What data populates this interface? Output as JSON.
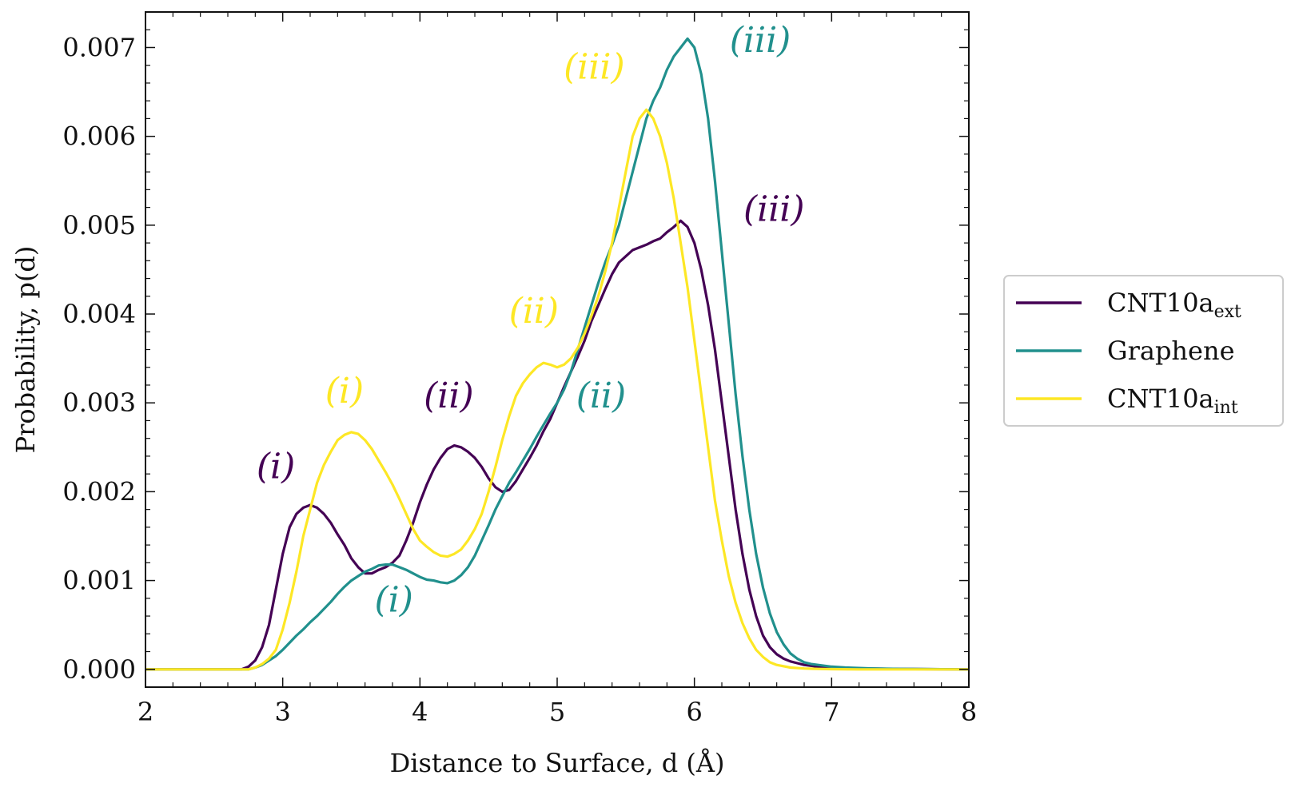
{
  "chart_data": {
    "type": "line",
    "xlabel": "Distance to Surface, d (Å)",
    "ylabel": "Probability, p(d)",
    "xlim": [
      2,
      8
    ],
    "ylim": [
      -0.0002,
      0.0074
    ],
    "xticks": [
      2,
      3,
      4,
      5,
      6,
      7,
      8
    ],
    "xtick_labels": [
      "2",
      "3",
      "4",
      "5",
      "6",
      "7",
      "8"
    ],
    "yticks": [
      0.0,
      0.001,
      0.002,
      0.003,
      0.004,
      0.005,
      0.006,
      0.007
    ],
    "ytick_labels": [
      "0.000",
      "0.001",
      "0.002",
      "0.003",
      "0.004",
      "0.005",
      "0.006",
      "0.007"
    ],
    "grid": false,
    "legend_position": "outside-right",
    "series": [
      {
        "name": "CNT10a",
        "name_sub": "ext",
        "color": "#440154",
        "x": [
          2.0,
          2.7,
          2.75,
          2.8,
          2.85,
          2.9,
          2.95,
          3.0,
          3.05,
          3.1,
          3.15,
          3.2,
          3.25,
          3.3,
          3.35,
          3.4,
          3.45,
          3.5,
          3.55,
          3.6,
          3.65,
          3.7,
          3.75,
          3.8,
          3.85,
          3.9,
          3.95,
          4.0,
          4.05,
          4.1,
          4.15,
          4.2,
          4.25,
          4.3,
          4.35,
          4.4,
          4.45,
          4.5,
          4.55,
          4.6,
          4.65,
          4.7,
          4.75,
          4.8,
          4.85,
          4.9,
          4.95,
          5.0,
          5.05,
          5.1,
          5.15,
          5.2,
          5.25,
          5.3,
          5.35,
          5.4,
          5.45,
          5.5,
          5.55,
          5.6,
          5.65,
          5.7,
          5.75,
          5.8,
          5.85,
          5.9,
          5.95,
          6.0,
          6.05,
          6.1,
          6.15,
          6.2,
          6.25,
          6.3,
          6.35,
          6.4,
          6.45,
          6.5,
          6.55,
          6.6,
          6.65,
          6.7,
          6.75,
          6.8,
          6.85,
          6.9,
          6.95,
          7.0,
          7.1,
          7.2,
          7.3,
          7.5,
          8.0
        ],
        "y": [
          0.0,
          0.0,
          3e-05,
          0.0001,
          0.00025,
          0.0005,
          0.0009,
          0.0013,
          0.0016,
          0.00175,
          0.00182,
          0.00185,
          0.00182,
          0.00175,
          0.00165,
          0.00152,
          0.0014,
          0.00125,
          0.00115,
          0.00108,
          0.00108,
          0.00112,
          0.00115,
          0.0012,
          0.00128,
          0.00145,
          0.00165,
          0.00188,
          0.00208,
          0.00225,
          0.00238,
          0.00248,
          0.00252,
          0.0025,
          0.00245,
          0.00238,
          0.00228,
          0.00215,
          0.00205,
          0.002,
          0.00202,
          0.00212,
          0.00225,
          0.00238,
          0.00252,
          0.00268,
          0.00282,
          0.003,
          0.00318,
          0.00335,
          0.00352,
          0.0037,
          0.00392,
          0.0041,
          0.00428,
          0.00445,
          0.00458,
          0.00465,
          0.00472,
          0.00475,
          0.00478,
          0.00482,
          0.00485,
          0.00492,
          0.00498,
          0.00505,
          0.00498,
          0.0048,
          0.0045,
          0.0041,
          0.0036,
          0.003,
          0.0024,
          0.0018,
          0.0013,
          0.0009,
          0.0006,
          0.00038,
          0.00025,
          0.00017,
          0.00012,
          9e-05,
          7e-05,
          5e-05,
          4e-05,
          3e-05,
          2.5e-05,
          2e-05,
          1.5e-05,
          1e-05,
          8e-06,
          4e-06,
          0.0
        ]
      },
      {
        "name": "Graphene",
        "color": "#21908d",
        "x": [
          2.0,
          2.75,
          2.8,
          2.85,
          2.9,
          2.95,
          3.0,
          3.05,
          3.1,
          3.15,
          3.2,
          3.25,
          3.3,
          3.35,
          3.4,
          3.45,
          3.5,
          3.55,
          3.6,
          3.65,
          3.7,
          3.75,
          3.8,
          3.85,
          3.9,
          3.95,
          4.0,
          4.05,
          4.1,
          4.15,
          4.2,
          4.25,
          4.3,
          4.35,
          4.4,
          4.45,
          4.5,
          4.55,
          4.6,
          4.65,
          4.7,
          4.75,
          4.8,
          4.85,
          4.9,
          4.95,
          5.0,
          5.05,
          5.1,
          5.15,
          5.2,
          5.25,
          5.3,
          5.35,
          5.4,
          5.45,
          5.5,
          5.55,
          5.6,
          5.65,
          5.7,
          5.75,
          5.8,
          5.85,
          5.9,
          5.95,
          6.0,
          6.05,
          6.1,
          6.15,
          6.2,
          6.25,
          6.3,
          6.35,
          6.4,
          6.45,
          6.5,
          6.55,
          6.6,
          6.65,
          6.7,
          6.75,
          6.8,
          6.85,
          6.9,
          6.95,
          7.0,
          7.1,
          7.2,
          7.3,
          7.5,
          8.0
        ],
        "y": [
          0.0,
          0.0,
          2e-05,
          5e-05,
          0.0001,
          0.00015,
          0.00022,
          0.0003,
          0.00038,
          0.00045,
          0.00053,
          0.0006,
          0.00068,
          0.00076,
          0.00085,
          0.00093,
          0.001,
          0.00105,
          0.0011,
          0.00113,
          0.00117,
          0.00118,
          0.00118,
          0.00115,
          0.00112,
          0.00108,
          0.00104,
          0.00101,
          0.001,
          0.00098,
          0.00097,
          0.001,
          0.00106,
          0.00115,
          0.00128,
          0.00145,
          0.00162,
          0.0018,
          0.00195,
          0.0021,
          0.00222,
          0.00235,
          0.00248,
          0.00262,
          0.00275,
          0.00288,
          0.003,
          0.00315,
          0.00335,
          0.0036,
          0.00385,
          0.0041,
          0.00435,
          0.00458,
          0.00478,
          0.005,
          0.0053,
          0.0056,
          0.0059,
          0.0062,
          0.0064,
          0.00655,
          0.00675,
          0.0069,
          0.007,
          0.0071,
          0.007,
          0.0067,
          0.0062,
          0.0055,
          0.0047,
          0.0039,
          0.0031,
          0.0024,
          0.0018,
          0.0013,
          0.00092,
          0.00063,
          0.00042,
          0.00028,
          0.00018,
          0.00012,
          8e-05,
          6e-05,
          5e-05,
          4e-05,
          3e-05,
          2e-05,
          1.5e-05,
          1e-05,
          5e-06,
          0.0
        ]
      },
      {
        "name": "CNT10a",
        "name_sub": "int",
        "color": "#fde725",
        "x": [
          2.0,
          2.75,
          2.8,
          2.85,
          2.9,
          2.95,
          3.0,
          3.05,
          3.1,
          3.15,
          3.2,
          3.25,
          3.3,
          3.35,
          3.4,
          3.45,
          3.5,
          3.55,
          3.6,
          3.65,
          3.7,
          3.75,
          3.8,
          3.85,
          3.9,
          3.95,
          4.0,
          4.05,
          4.1,
          4.15,
          4.2,
          4.25,
          4.3,
          4.35,
          4.4,
          4.45,
          4.5,
          4.55,
          4.6,
          4.65,
          4.7,
          4.75,
          4.8,
          4.85,
          4.9,
          4.95,
          5.0,
          5.05,
          5.1,
          5.15,
          5.2,
          5.25,
          5.3,
          5.35,
          5.4,
          5.45,
          5.5,
          5.55,
          5.6,
          5.65,
          5.7,
          5.75,
          5.8,
          5.85,
          5.9,
          5.95,
          6.0,
          6.05,
          6.1,
          6.15,
          6.2,
          6.25,
          6.3,
          6.35,
          6.4,
          6.45,
          6.5,
          6.55,
          6.6,
          6.7,
          6.8,
          6.9,
          7.0,
          7.2,
          7.5,
          8.0
        ],
        "y": [
          0.0,
          0.0,
          2e-05,
          6e-05,
          0.00012,
          0.00022,
          0.00045,
          0.00075,
          0.0011,
          0.0015,
          0.0018,
          0.0021,
          0.0023,
          0.00245,
          0.00258,
          0.00264,
          0.00267,
          0.00265,
          0.00258,
          0.00248,
          0.00235,
          0.00222,
          0.00208,
          0.00192,
          0.00175,
          0.00158,
          0.00145,
          0.00138,
          0.00132,
          0.00128,
          0.00127,
          0.0013,
          0.00135,
          0.00145,
          0.00158,
          0.00175,
          0.002,
          0.00228,
          0.00258,
          0.00285,
          0.00308,
          0.00322,
          0.00332,
          0.0034,
          0.00345,
          0.00343,
          0.0034,
          0.00343,
          0.0035,
          0.00362,
          0.00378,
          0.00398,
          0.0042,
          0.00448,
          0.0048,
          0.0052,
          0.0056,
          0.006,
          0.0062,
          0.0063,
          0.0062,
          0.006,
          0.0057,
          0.0053,
          0.0048,
          0.0043,
          0.0037,
          0.0031,
          0.0025,
          0.0019,
          0.00145,
          0.00105,
          0.00075,
          0.00052,
          0.00035,
          0.00022,
          0.00014,
          8e-05,
          5e-05,
          2e-05,
          1e-05,
          5e-06,
          2e-06,
          0.0,
          0.0,
          0.0
        ]
      }
    ],
    "annotations": [
      {
        "text": "(i)",
        "x": 2.95,
        "y": 0.00215,
        "color": "#440154"
      },
      {
        "text": "(ii)",
        "x": 4.21,
        "y": 0.00295,
        "color": "#440154"
      },
      {
        "text": "(iii)",
        "x": 6.58,
        "y": 0.00505,
        "color": "#440154"
      },
      {
        "text": "(i)",
        "x": 3.45,
        "y": 0.003,
        "color": "#fde725"
      },
      {
        "text": "(ii)",
        "x": 4.83,
        "y": 0.0039,
        "color": "#fde725"
      },
      {
        "text": "(iii)",
        "x": 5.27,
        "y": 0.00665,
        "color": "#fde725"
      },
      {
        "text": "(i)",
        "x": 3.81,
        "y": 0.00065,
        "color": "#21908d"
      },
      {
        "text": "(ii)",
        "x": 5.32,
        "y": 0.00295,
        "color": "#21908d"
      },
      {
        "text": "(iii)",
        "x": 6.48,
        "y": 0.00695,
        "color": "#21908d"
      }
    ]
  }
}
